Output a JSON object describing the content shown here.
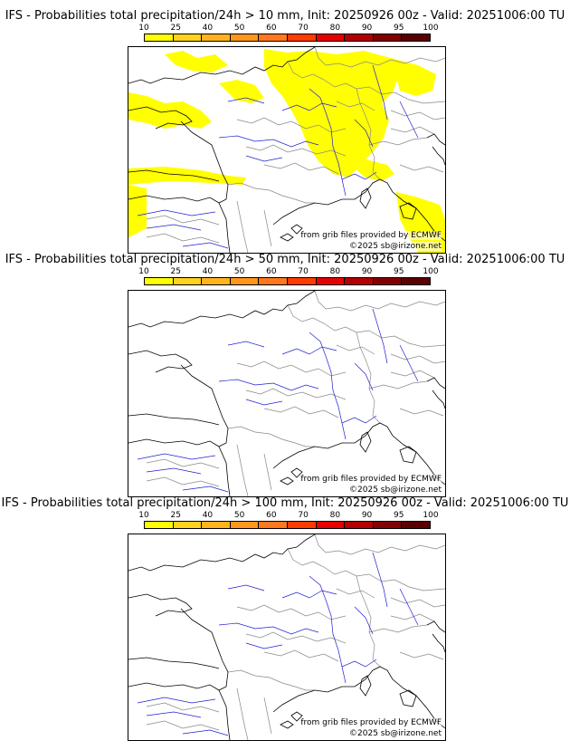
{
  "colorbar": {
    "ticks": [
      "10",
      "25",
      "40",
      "50",
      "60",
      "70",
      "80",
      "90",
      "95",
      "100"
    ],
    "colors": [
      "#ffff00",
      "#ffd21e",
      "#ffb41e",
      "#ff961e",
      "#ff781e",
      "#ff3c00",
      "#e60000",
      "#b40000",
      "#820000",
      "#5a0000"
    ]
  },
  "panels": [
    {
      "title": "IFS - Probabilities total precipitation/24h > 10 mm, Init: 20250926 00z - Valid: 20251006:00 TU",
      "source_credit": "from grib files provided by ECMWF",
      "copyright": "©2025 sb@irizone.net",
      "has_precip_area": true,
      "precip_probability": 10
    },
    {
      "title": "IFS - Probabilities total precipitation/24h > 50 mm, Init: 20250926 00z - Valid: 20251006:00 TU",
      "source_credit": "from grib files provided by ECMWF",
      "copyright": "©2025 sb@irizone.net",
      "has_precip_area": false
    },
    {
      "title": "IFS - Probabilities total precipitation/24h > 100 mm, Init: 20250926 00z - Valid: 20251006:00 TU",
      "source_credit": "from grib files provided by ECMWF",
      "copyright": "©2025 sb@irizone.net",
      "has_precip_area": false
    }
  ],
  "map_colors": {
    "coast": "#000000",
    "borders": "#888888",
    "rivers": "#2020d0",
    "precip": "#ffff00"
  }
}
